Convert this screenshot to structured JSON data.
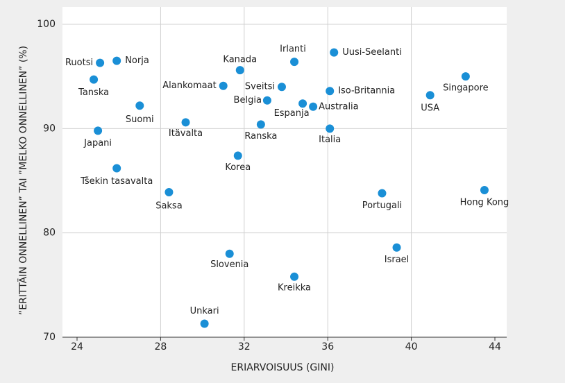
{
  "chart_data": {
    "type": "scatter",
    "xlabel": "ERIARVOISUUS (GINI)",
    "ylabel": "”ERITTÄIN ONNELLINEN” TAI ”MELKO ONNELLINEN” (%)",
    "labels": [
      "Ruotsi",
      "Norja",
      "Tanska",
      "Suomi",
      "Japani",
      "Tšekin tasavalta",
      "Saksa",
      "Itävalta",
      "Alankomaat",
      "Korea",
      "Kanada",
      "Irlanti",
      "Uusi-Seelanti",
      "Sveitsi",
      "Belgia",
      "Espanja",
      "Australia",
      "Iso-Britannia",
      "Ranska",
      "Italia",
      "USA",
      "Singapore",
      "Portugali",
      "Hong Kong",
      "Israel",
      "Slovenia",
      "Kreikka",
      "Unkari"
    ],
    "x": [
      25.1,
      25.9,
      24.8,
      27.0,
      25.0,
      25.9,
      28.4,
      29.2,
      31.0,
      31.7,
      31.8,
      34.4,
      36.3,
      33.8,
      33.1,
      34.8,
      35.3,
      36.1,
      32.8,
      36.1,
      40.9,
      42.6,
      38.6,
      43.5,
      39.3,
      31.3,
      34.4,
      30.1
    ],
    "values": [
      96.3,
      96.5,
      94.7,
      92.2,
      89.8,
      86.2,
      83.9,
      90.6,
      94.1,
      87.4,
      95.6,
      96.4,
      97.3,
      94.0,
      92.7,
      92.4,
      92.1,
      93.6,
      90.4,
      90.0,
      93.2,
      95.0,
      83.8,
      84.1,
      78.6,
      78.0,
      75.8,
      71.3
    ],
    "color": "#1a8fd6",
    "xlim": [
      24,
      44
    ],
    "xticks": [
      24,
      28,
      32,
      36,
      40,
      44
    ],
    "ylim": [
      70,
      100
    ],
    "yticks": [
      70,
      80,
      90,
      100
    ],
    "grid": true
  }
}
